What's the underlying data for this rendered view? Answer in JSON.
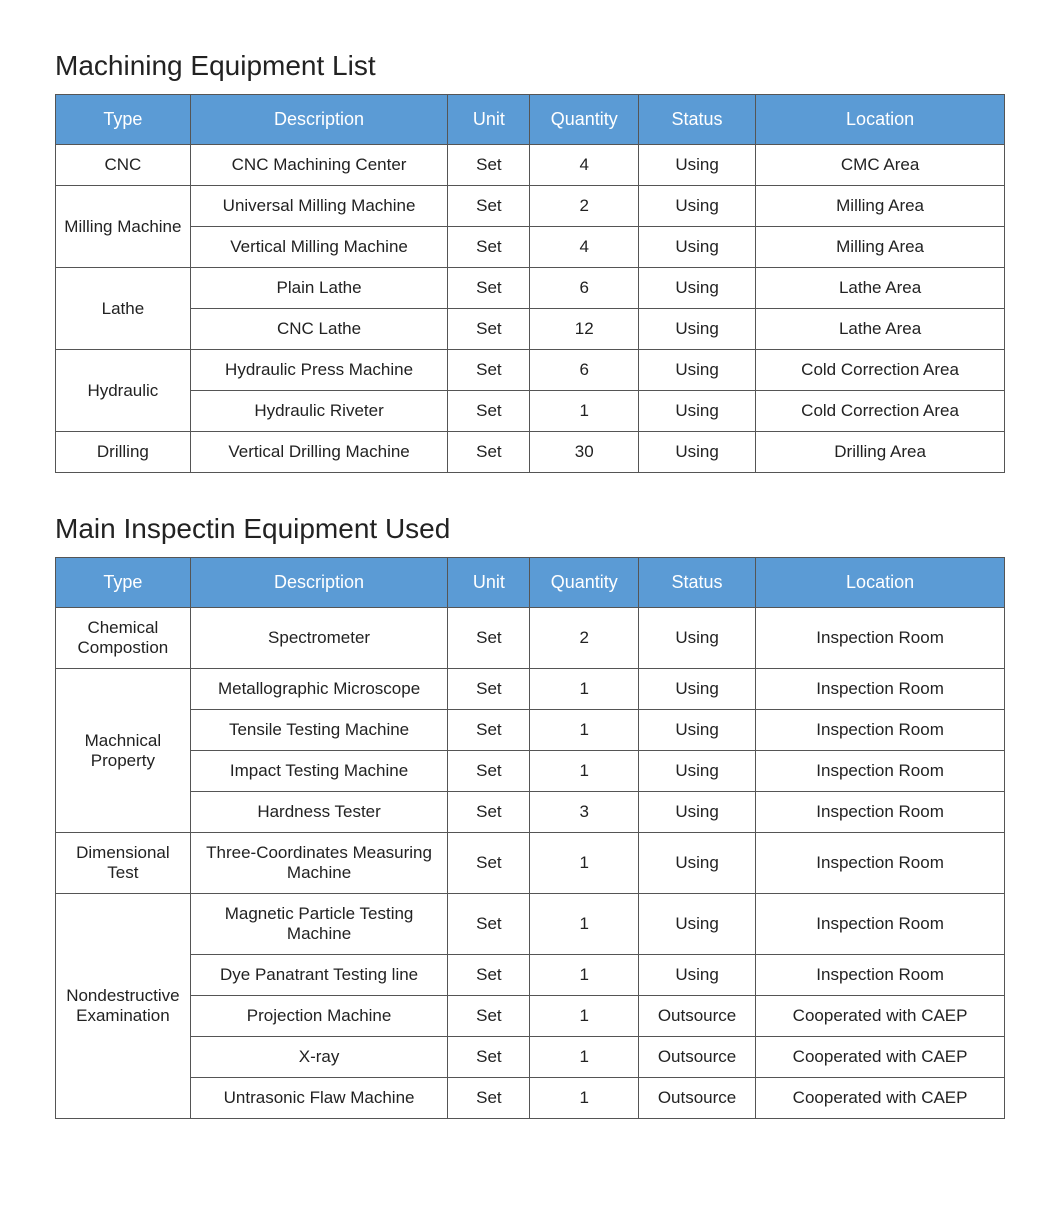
{
  "colors": {
    "header_bg": "#5b9bd5",
    "header_text": "#ffffff",
    "border": "#555555",
    "background": "#ffffff",
    "text": "#222222"
  },
  "headers": {
    "type": "Type",
    "description": "Description",
    "unit": "Unit",
    "quantity": "Quantity",
    "status": "Status",
    "location": "Location"
  },
  "tables": [
    {
      "title": "Machining Equipment List",
      "groups": [
        {
          "type": "CNC",
          "rows": [
            {
              "description": "CNC Machining Center",
              "unit": "Set",
              "quantity": "4",
              "status": "Using",
              "location": "CMC Area"
            }
          ]
        },
        {
          "type": "Milling Machine",
          "rows": [
            {
              "description": "Universal Milling Machine",
              "unit": "Set",
              "quantity": "2",
              "status": "Using",
              "location": "Milling Area"
            },
            {
              "description": "Vertical Milling Machine",
              "unit": "Set",
              "quantity": "4",
              "status": "Using",
              "location": "Milling Area"
            }
          ]
        },
        {
          "type": "Lathe",
          "rows": [
            {
              "description": "Plain Lathe",
              "unit": "Set",
              "quantity": "6",
              "status": "Using",
              "location": "Lathe Area"
            },
            {
              "description": "CNC Lathe",
              "unit": "Set",
              "quantity": "12",
              "status": "Using",
              "location": "Lathe Area"
            }
          ]
        },
        {
          "type": "Hydraulic",
          "rows": [
            {
              "description": "Hydraulic Press Machine",
              "unit": "Set",
              "quantity": "6",
              "status": "Using",
              "location": "Cold Correction Area"
            },
            {
              "description": "Hydraulic Riveter",
              "unit": "Set",
              "quantity": "1",
              "status": "Using",
              "location": "Cold Correction Area"
            }
          ]
        },
        {
          "type": "Drilling",
          "rows": [
            {
              "description": "Vertical Drilling Machine",
              "unit": "Set",
              "quantity": "30",
              "status": "Using",
              "location": "Drilling Area"
            }
          ]
        }
      ]
    },
    {
      "title": "Main Inspectin Equipment Used",
      "groups": [
        {
          "type": "Chemical Compostion",
          "rows": [
            {
              "description": "Spectrometer",
              "unit": "Set",
              "quantity": "2",
              "status": "Using",
              "location": "Inspection Room"
            }
          ]
        },
        {
          "type": "Machnical Property",
          "rows": [
            {
              "description": "Metallographic Microscope",
              "unit": "Set",
              "quantity": "1",
              "status": "Using",
              "location": "Inspection Room"
            },
            {
              "description": "Tensile Testing Machine",
              "unit": "Set",
              "quantity": "1",
              "status": "Using",
              "location": "Inspection Room"
            },
            {
              "description": "Impact Testing Machine",
              "unit": "Set",
              "quantity": "1",
              "status": "Using",
              "location": "Inspection Room"
            },
            {
              "description": "Hardness Tester",
              "unit": "Set",
              "quantity": "3",
              "status": "Using",
              "location": "Inspection Room"
            }
          ]
        },
        {
          "type": "Dimensional Test",
          "rows": [
            {
              "description": "Three-Coordinates Measuring Machine",
              "unit": "Set",
              "quantity": "1",
              "status": "Using",
              "location": "Inspection Room"
            }
          ]
        },
        {
          "type": "Nondestructive Examination",
          "rows": [
            {
              "description": "Magnetic Particle Testing Machine",
              "unit": "Set",
              "quantity": "1",
              "status": "Using",
              "location": "Inspection Room"
            },
            {
              "description": "Dye Panatrant Testing line",
              "unit": "Set",
              "quantity": "1",
              "status": "Using",
              "location": "Inspection Room"
            },
            {
              "description": "Projection Machine",
              "unit": "Set",
              "quantity": "1",
              "status": "Outsource",
              "location": "Cooperated with CAEP"
            },
            {
              "description": "X-ray",
              "unit": "Set",
              "quantity": "1",
              "status": "Outsource",
              "location": "Cooperated with CAEP"
            },
            {
              "description": "Untrasonic Flaw Machine",
              "unit": "Set",
              "quantity": "1",
              "status": "Outsource",
              "location": "Cooperated with CAEP"
            }
          ]
        }
      ]
    }
  ]
}
